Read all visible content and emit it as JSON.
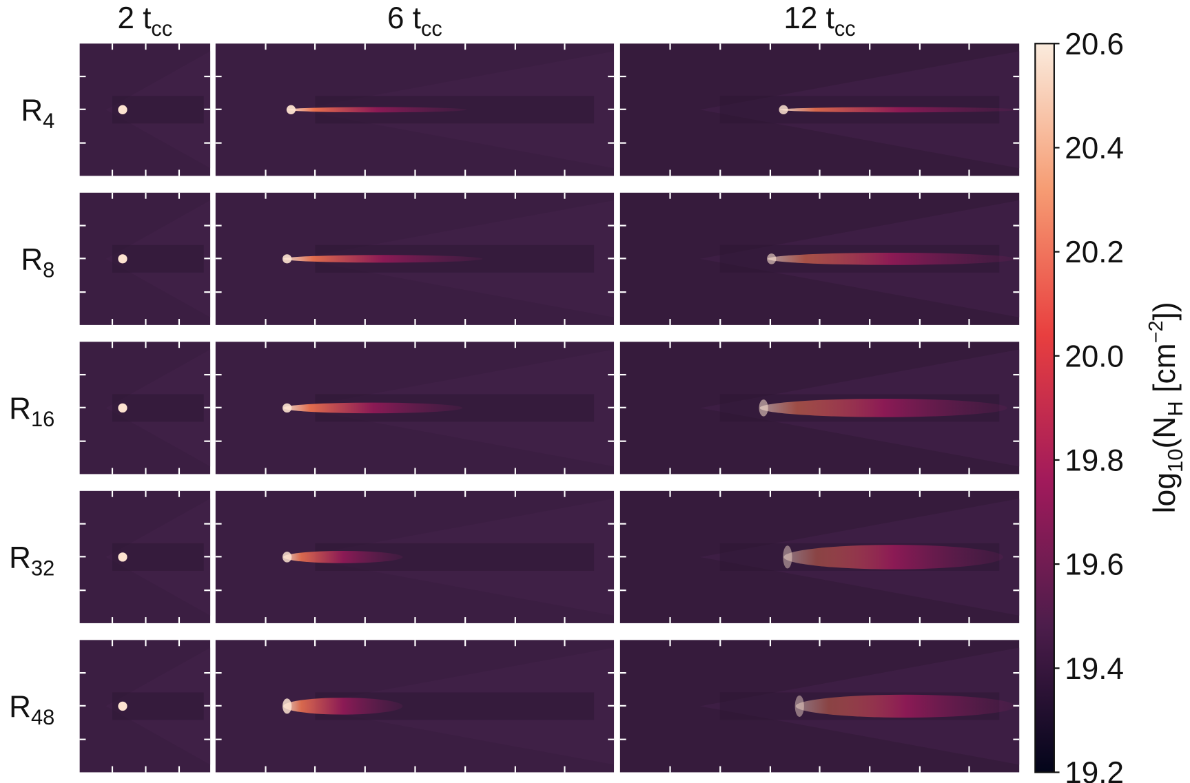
{
  "chart_data": {
    "type": "image-grid",
    "columns": [
      [
        {
          "text": "2 t",
          "kind": "normal"
        },
        {
          "text": "cc",
          "kind": "sub"
        }
      ],
      [
        {
          "text": "6 t",
          "kind": "normal"
        },
        {
          "text": "cc",
          "kind": "sub"
        }
      ],
      [
        {
          "text": "12 t",
          "kind": "normal"
        },
        {
          "text": "cc",
          "kind": "sub"
        }
      ]
    ],
    "rows": [
      [
        {
          "text": "R",
          "kind": "normal"
        },
        {
          "text": "4",
          "kind": "sub"
        }
      ],
      [
        {
          "text": "R",
          "kind": "normal"
        },
        {
          "text": "8",
          "kind": "sub"
        }
      ],
      [
        {
          "text": "R",
          "kind": "normal"
        },
        {
          "text": "16",
          "kind": "sub"
        }
      ],
      [
        {
          "text": "R",
          "kind": "normal"
        },
        {
          "text": "32",
          "kind": "sub"
        }
      ],
      [
        {
          "text": "R",
          "kind": "normal"
        },
        {
          "text": "48",
          "kind": "sub"
        }
      ]
    ],
    "colorbar": {
      "label": [
        {
          "text": "log",
          "kind": "normal"
        },
        {
          "text": "10",
          "kind": "sub"
        },
        {
          "text": "(N",
          "kind": "normal"
        },
        {
          "text": "H",
          "kind": "sub"
        },
        {
          "text": " [cm",
          "kind": "normal"
        },
        {
          "text": "−2",
          "kind": "sup"
        },
        {
          "text": "])",
          "kind": "normal"
        }
      ],
      "clim": [
        19.2,
        20.6
      ],
      "ticks": [
        19.2,
        19.4,
        19.6,
        19.8,
        {
          "value": 20,
          "label": "20.0"
        },
        20.2,
        20.4,
        20.6
      ],
      "colormap": [
        "#03051a",
        "#4c1d4b",
        "#a11a5b",
        "#e83f3f",
        "#f69c73",
        "#faebdd"
      ]
    }
  }
}
